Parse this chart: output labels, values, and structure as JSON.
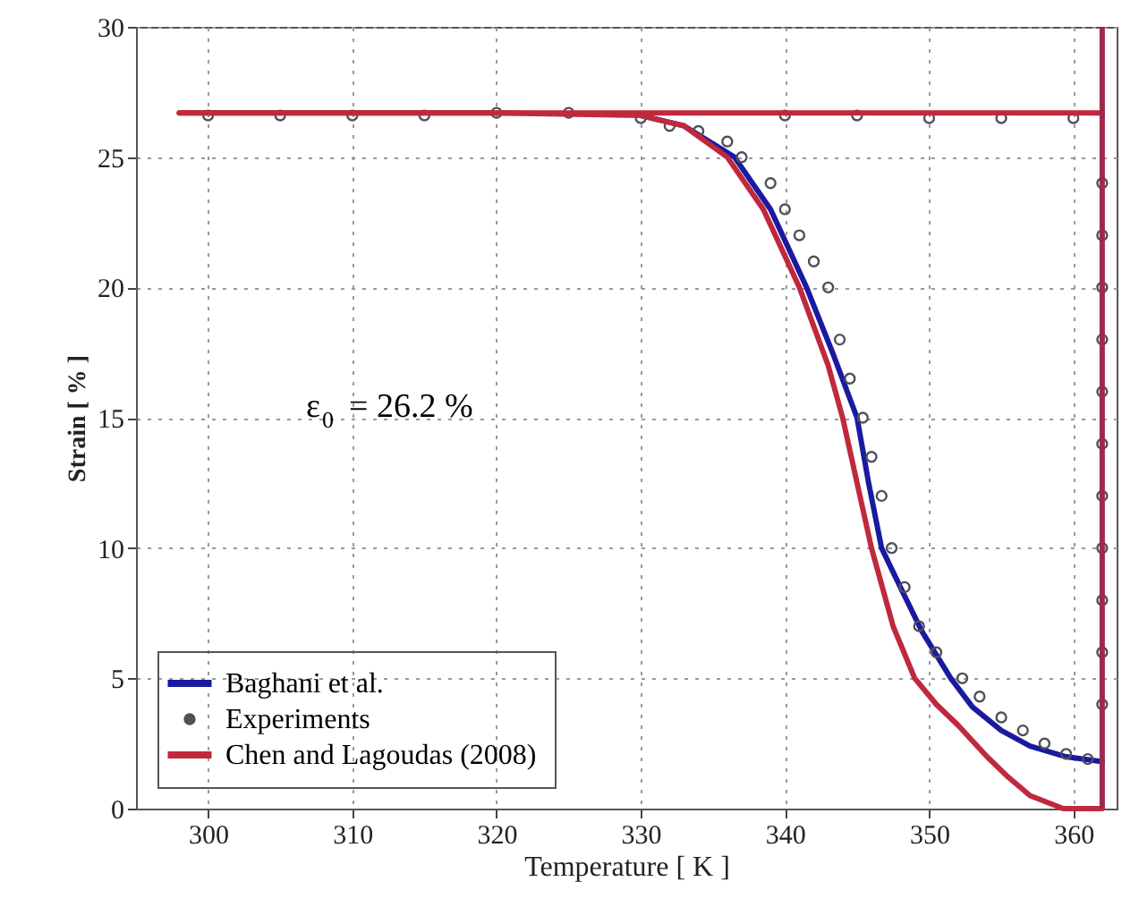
{
  "chart_data": {
    "type": "line",
    "xlabel": "Temperature [ K ]",
    "ylabel": "Strain [ % ]",
    "annotations": [
      "ε$_{0}$ = 26.2 %"
    ],
    "xlim": [
      295,
      363
    ],
    "xticks": [
      300,
      310,
      320,
      330,
      340,
      350,
      360
    ],
    "ylim": [
      0,
      30
    ],
    "yticks": [
      0,
      5,
      10,
      15,
      20,
      25,
      30
    ],
    "grid": true,
    "legend": "bottom left",
    "line_style": "solid",
    "ref_lines": [
      {
        "axis": "x",
        "value": 362,
        "color": "#a0284c"
      }
    ],
    "series": [
      {
        "name": "Baghani et al.",
        "color": "#1a1aa0",
        "x": [
          330,
          333,
          336.5,
          339,
          341.5,
          343.3,
          345,
          345.8,
          346.7,
          348,
          349.5,
          351.5,
          353,
          355,
          357,
          359.4,
          362
        ],
        "values": [
          26.6,
          26.2,
          25,
          23,
          20,
          17.5,
          15,
          12.5,
          10,
          8.5,
          6.8,
          5,
          3.9,
          3,
          2.4,
          2,
          1.8
        ]
      },
      {
        "name": "Experiments",
        "type": "scatter",
        "color": "#50505a",
        "marker": "circle",
        "x": [
          300,
          305,
          310,
          315,
          320,
          325,
          330,
          332,
          334,
          336,
          337,
          339,
          340,
          341,
          342,
          343,
          343.8,
          344.5,
          345.4,
          346,
          346.7,
          347.4,
          348.3,
          349.3,
          350.5,
          352.3,
          353.5,
          355,
          356.5,
          358,
          359.5,
          361,
          362,
          362,
          362,
          362,
          362,
          362,
          362,
          362,
          362,
          362,
          362,
          340,
          345,
          350,
          355,
          360
        ],
        "values": [
          26.6,
          26.6,
          26.6,
          26.6,
          26.7,
          26.7,
          26.5,
          26.2,
          26,
          25.6,
          25,
          24,
          23,
          22,
          21,
          20,
          18,
          16.5,
          15,
          13.5,
          12,
          10,
          8.5,
          7,
          6,
          5,
          4.3,
          3.5,
          3,
          2.5,
          2.1,
          1.9,
          4,
          6,
          8,
          10,
          12,
          14,
          16,
          18,
          20,
          22,
          24,
          26.6,
          26.6,
          26.5,
          26.5,
          26.5
        ]
      },
      {
        "name": "Chen and Lagoudas (2008)",
        "color": "#c0283c",
        "x": [
          298,
          320,
          330,
          333,
          336,
          338.5,
          341,
          343,
          344,
          345,
          346,
          347.5,
          349,
          350.5,
          352,
          354,
          355.5,
          357,
          359.3,
          362
        ],
        "values": [
          26.7,
          26.7,
          26.6,
          26.2,
          25,
          23,
          20,
          17,
          15,
          12.5,
          10,
          7,
          5,
          4,
          3.2,
          2,
          1.2,
          0.5,
          0,
          0
        ]
      },
      {
        "color": "#c0283c",
        "x": [
          298,
          362
        ],
        "values": [
          26.7,
          26.7
        ]
      }
    ]
  }
}
